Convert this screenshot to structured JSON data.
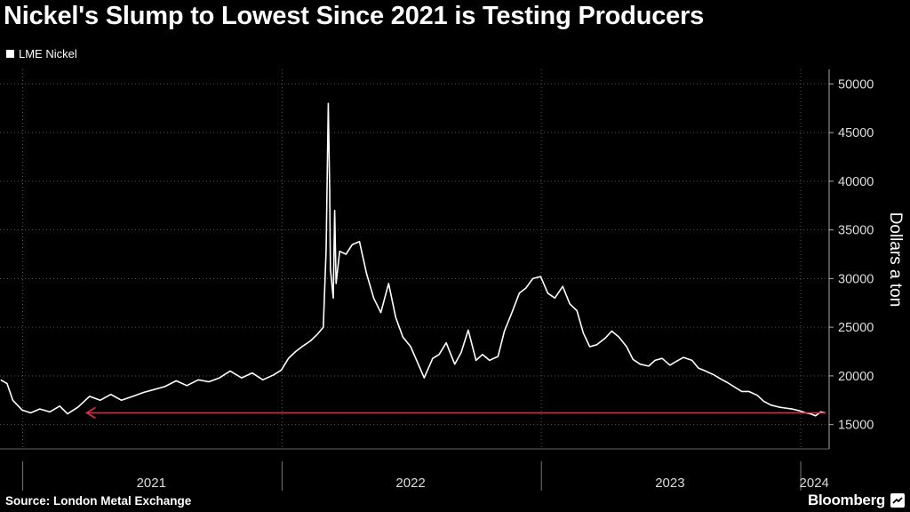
{
  "title": "Nickel's Slump to Lowest Since 2021 is Testing Producers",
  "source": "Source: London Metal Exchange",
  "brand": "Bloomberg",
  "colors": {
    "background": "#000000",
    "series": "#ffffff",
    "arrow": "#e0304a",
    "grid": "#555555"
  },
  "chart_data": {
    "type": "line",
    "ylabel": "Dollars a ton",
    "ylim": [
      12500,
      51500
    ],
    "yticks": [
      15000,
      20000,
      25000,
      30000,
      35000,
      40000,
      45000,
      50000
    ],
    "ytick_labels": [
      "15000",
      "20000",
      "25000",
      "30000",
      "35000",
      "40000",
      "45000",
      "50000"
    ],
    "xlim": [
      "2020-11-30",
      "2024-02-10"
    ],
    "xticks": [
      {
        "label": "2021",
        "date": "2021-07-01"
      },
      {
        "label": "2022",
        "date": "2022-07-01"
      },
      {
        "label": "2023",
        "date": "2023-07-01"
      },
      {
        "label": "2024",
        "date": "2024-01-20"
      }
    ],
    "year_dividers": [
      "2021-01-01",
      "2022-01-01",
      "2023-01-01",
      "2024-01-01"
    ],
    "grid": true,
    "legend": "top-left",
    "series": [
      {
        "name": "LME Nickel",
        "points": [
          [
            "2020-12-01",
            19600
          ],
          [
            "2020-12-10",
            19200
          ],
          [
            "2020-12-18",
            17500
          ],
          [
            "2020-12-31",
            16500
          ],
          [
            "2021-01-12",
            16200
          ],
          [
            "2021-01-25",
            16600
          ],
          [
            "2021-02-08",
            16300
          ],
          [
            "2021-02-22",
            16900
          ],
          [
            "2021-03-05",
            16100
          ],
          [
            "2021-03-20",
            16800
          ],
          [
            "2021-04-05",
            17900
          ],
          [
            "2021-04-20",
            17500
          ],
          [
            "2021-05-05",
            18100
          ],
          [
            "2021-05-20",
            17500
          ],
          [
            "2021-06-05",
            17900
          ],
          [
            "2021-06-20",
            18300
          ],
          [
            "2021-07-05",
            18600
          ],
          [
            "2021-07-20",
            18900
          ],
          [
            "2021-08-05",
            19500
          ],
          [
            "2021-08-20",
            19000
          ],
          [
            "2021-09-05",
            19600
          ],
          [
            "2021-09-20",
            19400
          ],
          [
            "2021-10-05",
            19800
          ],
          [
            "2021-10-20",
            20500
          ],
          [
            "2021-11-05",
            19800
          ],
          [
            "2021-11-20",
            20300
          ],
          [
            "2021-12-05",
            19600
          ],
          [
            "2021-12-20",
            20100
          ],
          [
            "2021-12-31",
            20600
          ],
          [
            "2022-01-10",
            21800
          ],
          [
            "2022-01-20",
            22500
          ],
          [
            "2022-01-31",
            23100
          ],
          [
            "2022-02-10",
            23600
          ],
          [
            "2022-02-20",
            24300
          ],
          [
            "2022-02-28",
            25000
          ],
          [
            "2022-03-02",
            29000
          ],
          [
            "2022-03-04",
            33000
          ],
          [
            "2022-03-07",
            48000
          ],
          [
            "2022-03-09",
            39000
          ],
          [
            "2022-03-10",
            31000
          ],
          [
            "2022-03-14",
            28000
          ],
          [
            "2022-03-16",
            37000
          ],
          [
            "2022-03-18",
            29500
          ],
          [
            "2022-03-23",
            32800
          ],
          [
            "2022-04-01",
            32500
          ],
          [
            "2022-04-10",
            33500
          ],
          [
            "2022-04-20",
            33800
          ],
          [
            "2022-04-30",
            30500
          ],
          [
            "2022-05-10",
            28000
          ],
          [
            "2022-05-20",
            26500
          ],
          [
            "2022-05-31",
            29500
          ],
          [
            "2022-06-10",
            26000
          ],
          [
            "2022-06-20",
            24000
          ],
          [
            "2022-07-01",
            23000
          ],
          [
            "2022-07-10",
            21500
          ],
          [
            "2022-07-20",
            19800
          ],
          [
            "2022-08-01",
            21800
          ],
          [
            "2022-08-10",
            22200
          ],
          [
            "2022-08-20",
            23400
          ],
          [
            "2022-09-01",
            21200
          ],
          [
            "2022-09-10",
            22400
          ],
          [
            "2022-09-20",
            24700
          ],
          [
            "2022-10-01",
            21600
          ],
          [
            "2022-10-10",
            22200
          ],
          [
            "2022-10-20",
            21600
          ],
          [
            "2022-11-01",
            22000
          ],
          [
            "2022-11-10",
            24600
          ],
          [
            "2022-11-20",
            26400
          ],
          [
            "2022-12-01",
            28500
          ],
          [
            "2022-12-10",
            29000
          ],
          [
            "2022-12-20",
            30000
          ],
          [
            "2022-12-31",
            30200
          ],
          [
            "2023-01-10",
            28500
          ],
          [
            "2023-01-20",
            28000
          ],
          [
            "2023-01-31",
            29200
          ],
          [
            "2023-02-10",
            27400
          ],
          [
            "2023-02-20",
            26700
          ],
          [
            "2023-03-01",
            24400
          ],
          [
            "2023-03-10",
            23000
          ],
          [
            "2023-03-20",
            23200
          ],
          [
            "2023-04-01",
            23900
          ],
          [
            "2023-04-10",
            24600
          ],
          [
            "2023-04-20",
            24000
          ],
          [
            "2023-05-01",
            23000
          ],
          [
            "2023-05-10",
            21700
          ],
          [
            "2023-05-20",
            21200
          ],
          [
            "2023-06-01",
            21000
          ],
          [
            "2023-06-10",
            21600
          ],
          [
            "2023-06-20",
            21800
          ],
          [
            "2023-07-01",
            21100
          ],
          [
            "2023-07-10",
            21500
          ],
          [
            "2023-07-20",
            21900
          ],
          [
            "2023-08-01",
            21600
          ],
          [
            "2023-08-10",
            20800
          ],
          [
            "2023-08-20",
            20500
          ],
          [
            "2023-09-01",
            20100
          ],
          [
            "2023-09-10",
            19700
          ],
          [
            "2023-09-20",
            19300
          ],
          [
            "2023-10-01",
            18800
          ],
          [
            "2023-10-10",
            18400
          ],
          [
            "2023-10-20",
            18400
          ],
          [
            "2023-11-01",
            18000
          ],
          [
            "2023-11-10",
            17400
          ],
          [
            "2023-11-20",
            17000
          ],
          [
            "2023-12-01",
            16800
          ],
          [
            "2023-12-10",
            16700
          ],
          [
            "2023-12-20",
            16600
          ],
          [
            "2023-12-31",
            16400
          ],
          [
            "2024-01-08",
            16200
          ],
          [
            "2024-01-15",
            16100
          ],
          [
            "2024-01-22",
            15900
          ],
          [
            "2024-01-29",
            16300
          ],
          [
            "2024-02-05",
            16200
          ]
        ]
      }
    ],
    "annotations": [
      {
        "type": "arrow",
        "y": 16200,
        "from_date": "2024-02-05",
        "to_date": "2021-04-01"
      }
    ]
  }
}
